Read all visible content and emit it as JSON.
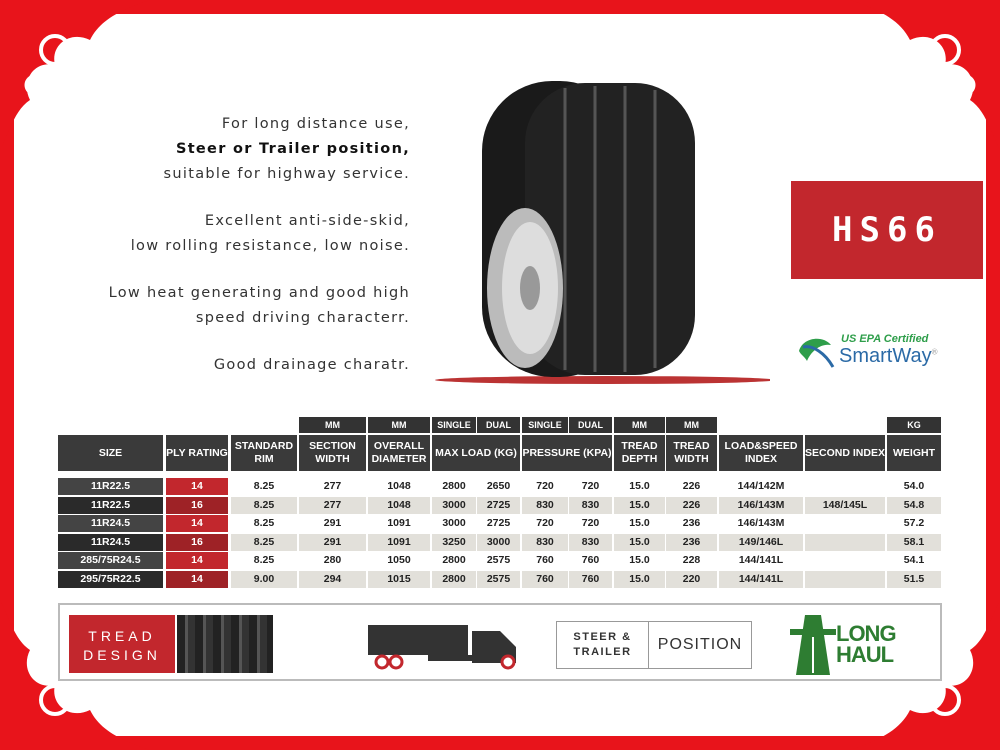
{
  "description": [
    {
      "lines": [
        "For long distance use,",
        "Steer or Trailer position,",
        "suitable for highway service."
      ],
      "bold_line": 1
    },
    {
      "lines": [
        "Excellent anti-side-skid,",
        "low rolling resistance, low noise."
      ]
    },
    {
      "lines": [
        "Low heat generating and good high",
        "speed driving characterr."
      ]
    },
    {
      "lines": [
        "Good drainage charatr."
      ]
    }
  ],
  "model": "HS66",
  "certification": {
    "top": "US EPA Certified",
    "brand": "SmartWay",
    "mark": "®"
  },
  "table": {
    "units": {
      "section": "MM",
      "overall": "MM",
      "single1": "SINGLE",
      "dual1": "DUAL",
      "single2": "SINGLE",
      "dual2": "DUAL",
      "depth": "MM",
      "width": "MM",
      "weight": "KG"
    },
    "headers": [
      "SIZE",
      "PLY RATING",
      "STANDARD RIM",
      "SECTION WIDTH",
      "OVERALL DIAMETER",
      "MAX LOAD (KG)",
      "PRESSURE (KPA)",
      "TREAD DEPTH",
      "TREAD WIDTH",
      "LOAD&SPEED INDEX",
      "SECOND INDEX",
      "WEIGHT"
    ],
    "rows": [
      [
        "11R22.5",
        "14",
        "8.25",
        "277",
        "1048",
        "2800",
        "2650",
        "720",
        "720",
        "15.0",
        "226",
        "144/142M",
        "",
        "54.0"
      ],
      [
        "11R22.5",
        "16",
        "8.25",
        "277",
        "1048",
        "3000",
        "2725",
        "830",
        "830",
        "15.0",
        "226",
        "146/143M",
        "148/145L",
        "54.8"
      ],
      [
        "11R24.5",
        "14",
        "8.25",
        "291",
        "1091",
        "3000",
        "2725",
        "720",
        "720",
        "15.0",
        "236",
        "146/143M",
        "",
        "57.2"
      ],
      [
        "11R24.5",
        "16",
        "8.25",
        "291",
        "1091",
        "3250",
        "3000",
        "830",
        "830",
        "15.0",
        "236",
        "149/146L",
        "",
        "58.1"
      ],
      [
        "285/75R24.5",
        "14",
        "8.25",
        "280",
        "1050",
        "2800",
        "2575",
        "760",
        "760",
        "15.0",
        "228",
        "144/141L",
        "",
        "54.1"
      ],
      [
        "295/75R22.5",
        "14",
        "9.00",
        "294",
        "1015",
        "2800",
        "2575",
        "760",
        "760",
        "15.0",
        "220",
        "144/141L",
        "",
        "51.5"
      ]
    ]
  },
  "banner": {
    "tread_design": [
      "TREAD",
      "DESIGN"
    ],
    "position_left": [
      "STEER &",
      "TRAILER"
    ],
    "position_right": "POSITION",
    "long_haul": [
      "LONG",
      "HAUL"
    ]
  },
  "colors": {
    "frame": "#e8141b",
    "accent": "#c2272d",
    "header": "#3a3a3a",
    "green": "#2e7d32"
  }
}
